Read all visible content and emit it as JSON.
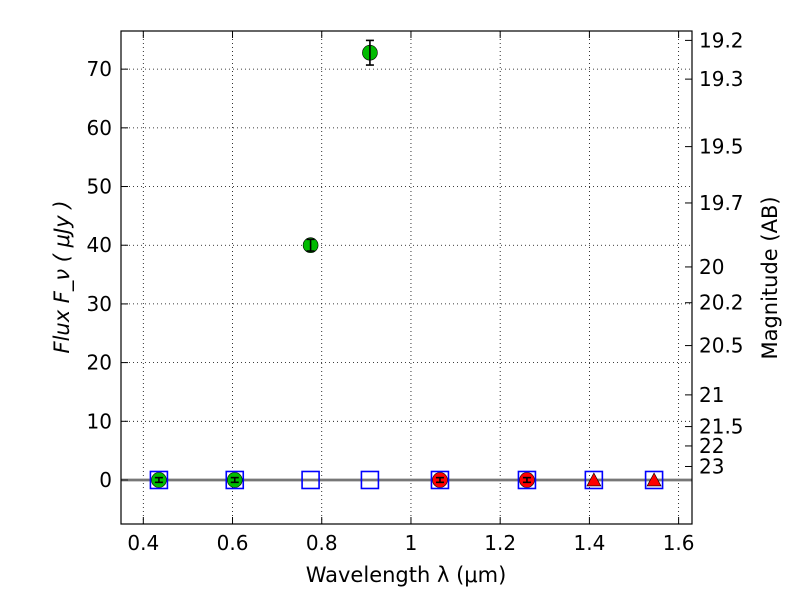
{
  "chart_data": {
    "type": "scatter",
    "xlabel": "Wavelength  λ (μm)",
    "ylabel": "Flux  F_ν  ( μJy )",
    "y2label": "Magnitude (AB)",
    "xlim": [
      0.35,
      1.63
    ],
    "ylim": [
      -7.5,
      76.5
    ],
    "x_ticks": [
      0.4,
      0.6,
      0.8,
      1.0,
      1.2,
      1.4,
      1.6
    ],
    "x_tick_labels": [
      "0.4",
      "0.6",
      "0.8",
      "1",
      "1.2",
      "1.4",
      "1.6"
    ],
    "y_ticks": [
      0,
      10,
      20,
      30,
      40,
      50,
      60,
      70
    ],
    "y_tick_labels": [
      "0",
      "10",
      "20",
      "30",
      "40",
      "50",
      "60",
      "70"
    ],
    "y2_ticks": [
      {
        "label": "19.2",
        "flux": 74.9
      },
      {
        "label": "19.3",
        "flux": 68.3
      },
      {
        "label": "19.5",
        "flux": 56.8
      },
      {
        "label": "19.7",
        "flux": 47.2
      },
      {
        "label": "20",
        "flux": 36.3
      },
      {
        "label": "20.2",
        "flux": 30.2
      },
      {
        "label": "20.5",
        "flux": 22.9
      },
      {
        "label": "21",
        "flux": 14.5
      },
      {
        "label": "21.5",
        "flux": 9.1
      },
      {
        "label": "22",
        "flux": 5.8
      },
      {
        "label": "23",
        "flux": 2.3
      }
    ],
    "grid": true,
    "zero_line": true,
    "series": [
      {
        "marker": "circle",
        "color": "#00bb00",
        "points": [
          {
            "x": 0.435,
            "y": 0.0,
            "err": 0.4
          },
          {
            "x": 0.605,
            "y": 0.0,
            "err": 0.4
          },
          {
            "x": 0.775,
            "y": 40.0,
            "err": 1.0
          },
          {
            "x": 0.908,
            "y": 72.8,
            "err": 2.1
          }
        ]
      },
      {
        "marker": "circle",
        "color": "#ff0000",
        "points": [
          {
            "x": 1.065,
            "y": 0.0,
            "err": 0.4
          },
          {
            "x": 1.26,
            "y": 0.0,
            "err": 0.4
          }
        ]
      },
      {
        "marker": "triangle",
        "color": "#ff0000",
        "points": [
          {
            "x": 1.41,
            "y": 0.0
          },
          {
            "x": 1.545,
            "y": 0.0
          }
        ]
      },
      {
        "marker": "open-square",
        "color": "#0000ff",
        "points": [
          {
            "x": 0.435,
            "y": 0.0
          },
          {
            "x": 0.605,
            "y": 0.0
          },
          {
            "x": 0.775,
            "y": 0.0
          },
          {
            "x": 0.908,
            "y": 0.0
          },
          {
            "x": 1.065,
            "y": 0.0
          },
          {
            "x": 1.26,
            "y": 0.0
          },
          {
            "x": 1.41,
            "y": 0.0
          },
          {
            "x": 1.545,
            "y": 0.0
          }
        ]
      }
    ]
  }
}
